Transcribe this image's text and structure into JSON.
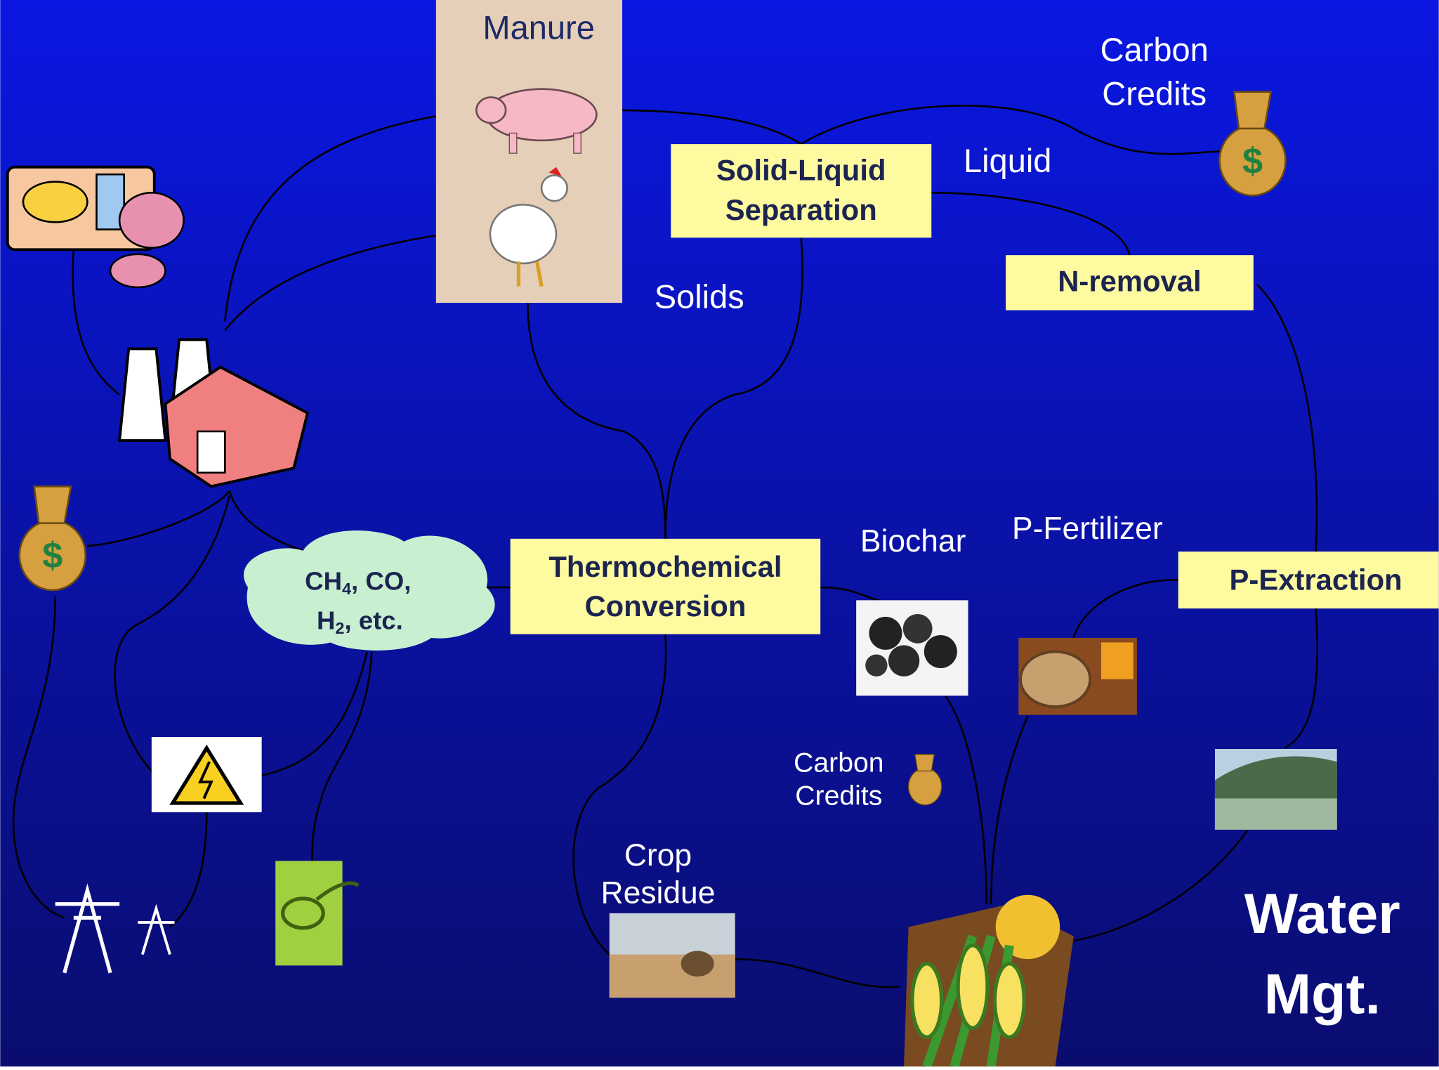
{
  "labels": {
    "manure": "Manure",
    "carbon_credits_top": [
      "Carbon",
      "Credits"
    ],
    "solid_liquid": [
      "Solid-Liquid",
      "Separation"
    ],
    "liquid": "Liquid",
    "n_removal": "N-removal",
    "solids": "Solids",
    "thermochemical": [
      "Thermochemical",
      "Conversion"
    ],
    "biochar": "Biochar",
    "p_fertilizer": "P-Fertilizer",
    "p_extraction": "P-Extraction",
    "gas": [
      {
        "text": "CH",
        "sub": "4",
        "rest": ", CO,"
      },
      {
        "text": "H",
        "sub": "2",
        "rest": ", etc."
      }
    ],
    "carbon_credits_small": [
      "Carbon",
      "Credits"
    ],
    "crop_residue": [
      "Crop",
      "Residue"
    ],
    "water_mgt": [
      "Water",
      "Mgt."
    ]
  }
}
